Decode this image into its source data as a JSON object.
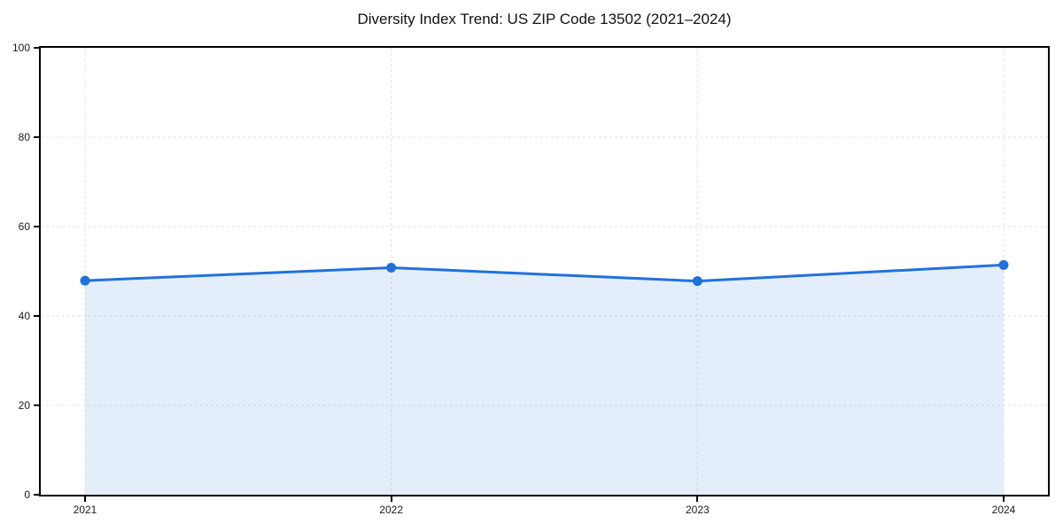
{
  "chart_data": {
    "type": "area",
    "title": "Diversity Index Trend: US ZIP Code 13502 (2021–2024)",
    "series_name": "Diversity Index",
    "categories": [
      "2021",
      "2022",
      "2023",
      "2024"
    ],
    "x": [
      2021,
      2022,
      2023,
      2024
    ],
    "values": [
      47.9,
      50.8,
      47.8,
      51.4
    ],
    "xlabel": "",
    "ylabel": "",
    "ylim": [
      0,
      100
    ],
    "yticks": [
      0,
      20,
      40,
      60,
      80,
      100
    ],
    "grid": true,
    "grid_style": "dashed",
    "legend_position": "none",
    "line_color": "#2171dd",
    "marker": "circle",
    "fill_opacity": 0.12,
    "grid_color": "#e0e0e0",
    "axis_color": "#000000",
    "text_color": "#1a1a1a",
    "background_color": "#ffffff"
  }
}
